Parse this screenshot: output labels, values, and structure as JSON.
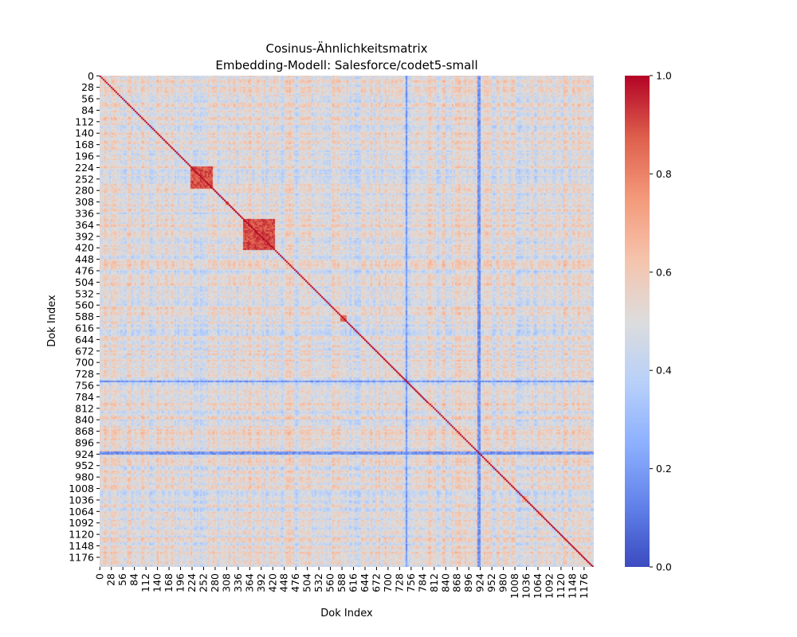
{
  "chart_data": {
    "type": "heatmap",
    "title_line1": "Cosinus-Ähnlichkeitsmatrix",
    "title_line2": "Embedding-Modell: Salesforce/codet5-small",
    "xlabel": "Dok Index",
    "ylabel": "Dok Index",
    "n_docs": 1200,
    "tick_step": 28,
    "x_ticks": [
      "0",
      "28",
      "56",
      "84",
      "112",
      "140",
      "168",
      "196",
      "224",
      "252",
      "280",
      "308",
      "336",
      "364",
      "392",
      "420",
      "448",
      "476",
      "504",
      "532",
      "560",
      "588",
      "616",
      "644",
      "672",
      "700",
      "728",
      "756",
      "784",
      "812",
      "840",
      "868",
      "896",
      "924",
      "952",
      "980",
      "1008",
      "1036",
      "1064",
      "1092",
      "1120",
      "1148",
      "1176"
    ],
    "y_ticks": [
      "0",
      "28",
      "56",
      "84",
      "112",
      "140",
      "168",
      "196",
      "224",
      "252",
      "280",
      "308",
      "336",
      "364",
      "392",
      "420",
      "448",
      "476",
      "504",
      "532",
      "560",
      "588",
      "616",
      "644",
      "672",
      "700",
      "728",
      "756",
      "784",
      "812",
      "840",
      "868",
      "896",
      "924",
      "952",
      "980",
      "1008",
      "1036",
      "1064",
      "1092",
      "1120",
      "1148",
      "1176"
    ],
    "colormap": "coolwarm",
    "vmin": 0.0,
    "vmax": 1.0,
    "colorbar_ticks": [
      "0.0",
      "0.2",
      "0.4",
      "0.6",
      "0.8",
      "1.0"
    ],
    "diagonal_value": 1.0,
    "high_similarity_blocks": [
      {
        "start": 218,
        "end": 272,
        "value": 0.95
      },
      {
        "start": 345,
        "end": 425,
        "value": 0.96
      },
      {
        "start": 583,
        "end": 598,
        "value": 0.92
      },
      {
        "start": 305,
        "end": 313,
        "value": 0.9
      },
      {
        "start": 1025,
        "end": 1040,
        "value": 0.75
      },
      {
        "start": 1060,
        "end": 1075,
        "value": 0.72
      }
    ],
    "low_similarity_bands": [
      {
        "start": 916,
        "end": 924,
        "value": 0.1
      },
      {
        "start": 740,
        "end": 746,
        "value": 0.1
      }
    ],
    "background_mean": 0.5
  },
  "colors": {
    "low": "#3b4cc0",
    "mid": "#dddddd",
    "high": "#b40426"
  }
}
